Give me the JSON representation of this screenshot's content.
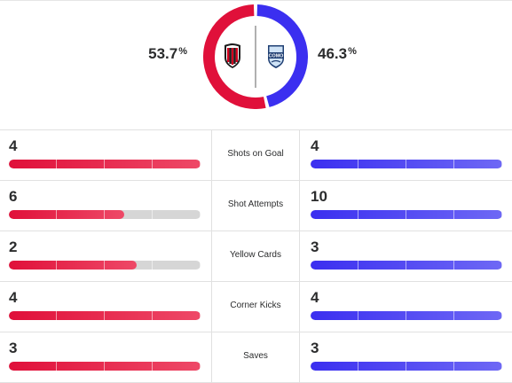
{
  "possession": {
    "home": {
      "value": "53.7",
      "unit": "%",
      "fraction": 0.537,
      "color": "#e0103a",
      "crest": "ac-milan-crest-icon"
    },
    "away": {
      "value": "46.3",
      "unit": "%",
      "fraction": 0.463,
      "color": "#3b2ff0",
      "crest": "como-crest-icon",
      "crest_text": "COMO"
    }
  },
  "stats": [
    {
      "label": "Shots on Goal",
      "home": "4",
      "away": "4",
      "home_fill": 1.0,
      "away_fill": 1.0
    },
    {
      "label": "Shot Attempts",
      "home": "6",
      "away": "10",
      "home_fill": 0.6,
      "away_fill": 1.0
    },
    {
      "label": "Yellow Cards",
      "home": "2",
      "away": "3",
      "home_fill": 0.667,
      "away_fill": 1.0
    },
    {
      "label": "Corner Kicks",
      "home": "4",
      "away": "4",
      "home_fill": 1.0,
      "away_fill": 1.0
    },
    {
      "label": "Saves",
      "home": "3",
      "away": "3",
      "home_fill": 1.0,
      "away_fill": 1.0
    }
  ]
}
